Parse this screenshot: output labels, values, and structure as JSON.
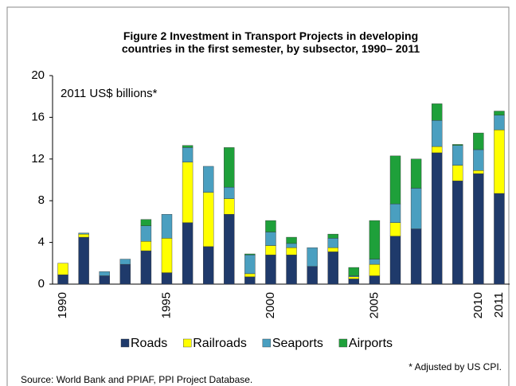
{
  "chart_data": {
    "type": "stacked_bar",
    "title": "Figure 2 Investment in Transport Projects in developing\ncountries in the first semester, by subsector, 1990– 2011",
    "unit_label": "2011 US$  billions*",
    "note": "* Adjusted by US CPI.",
    "source": "Source:  World Bank and PPIAF, PPI Project Database.",
    "categories": [
      "1990",
      null,
      null,
      null,
      null,
      "1995",
      null,
      null,
      null,
      null,
      "2000",
      null,
      null,
      null,
      null,
      "2005",
      null,
      null,
      null,
      null,
      "2010",
      "2011"
    ],
    "series": [
      {
        "name": "Roads",
        "color": "#1f3a6b",
        "values": [
          0.9,
          4.5,
          0.8,
          1.9,
          3.2,
          1.1,
          5.9,
          3.6,
          6.7,
          0.7,
          2.8,
          2.8,
          1.7,
          3.1,
          0.5,
          0.8,
          4.6,
          5.3,
          12.6,
          9.9,
          10.6,
          8.7
        ]
      },
      {
        "name": "Railroads",
        "color": "#ffff00",
        "values": [
          1.1,
          0.3,
          0,
          0,
          0.9,
          3.3,
          5.8,
          5.2,
          1.5,
          0.3,
          0.9,
          0.7,
          0,
          0.4,
          0.2,
          1.1,
          1.3,
          0,
          0.6,
          1.5,
          0.3,
          6.1
        ]
      },
      {
        "name": "Seaports",
        "color": "#4a9fc0",
        "values": [
          0,
          0.1,
          0.4,
          0.5,
          1.5,
          2.3,
          1.4,
          2.5,
          1.1,
          1.8,
          1.3,
          0.4,
          1.8,
          0.9,
          0.1,
          0.5,
          1.8,
          3.9,
          2.5,
          1.9,
          2.0,
          1.4
        ]
      },
      {
        "name": "Airports",
        "color": "#1ea03a",
        "values": [
          0,
          0,
          0,
          0,
          0.6,
          0,
          0.2,
          0,
          3.8,
          0.1,
          1.1,
          0.6,
          0,
          0.4,
          0.8,
          3.7,
          4.6,
          2.8,
          1.6,
          0.1,
          1.6,
          0.4
        ]
      }
    ],
    "ylim": [
      0,
      20
    ],
    "yticks": [
      0,
      4,
      8,
      12,
      16,
      20
    ],
    "grid": false,
    "legend": "bottom"
  }
}
